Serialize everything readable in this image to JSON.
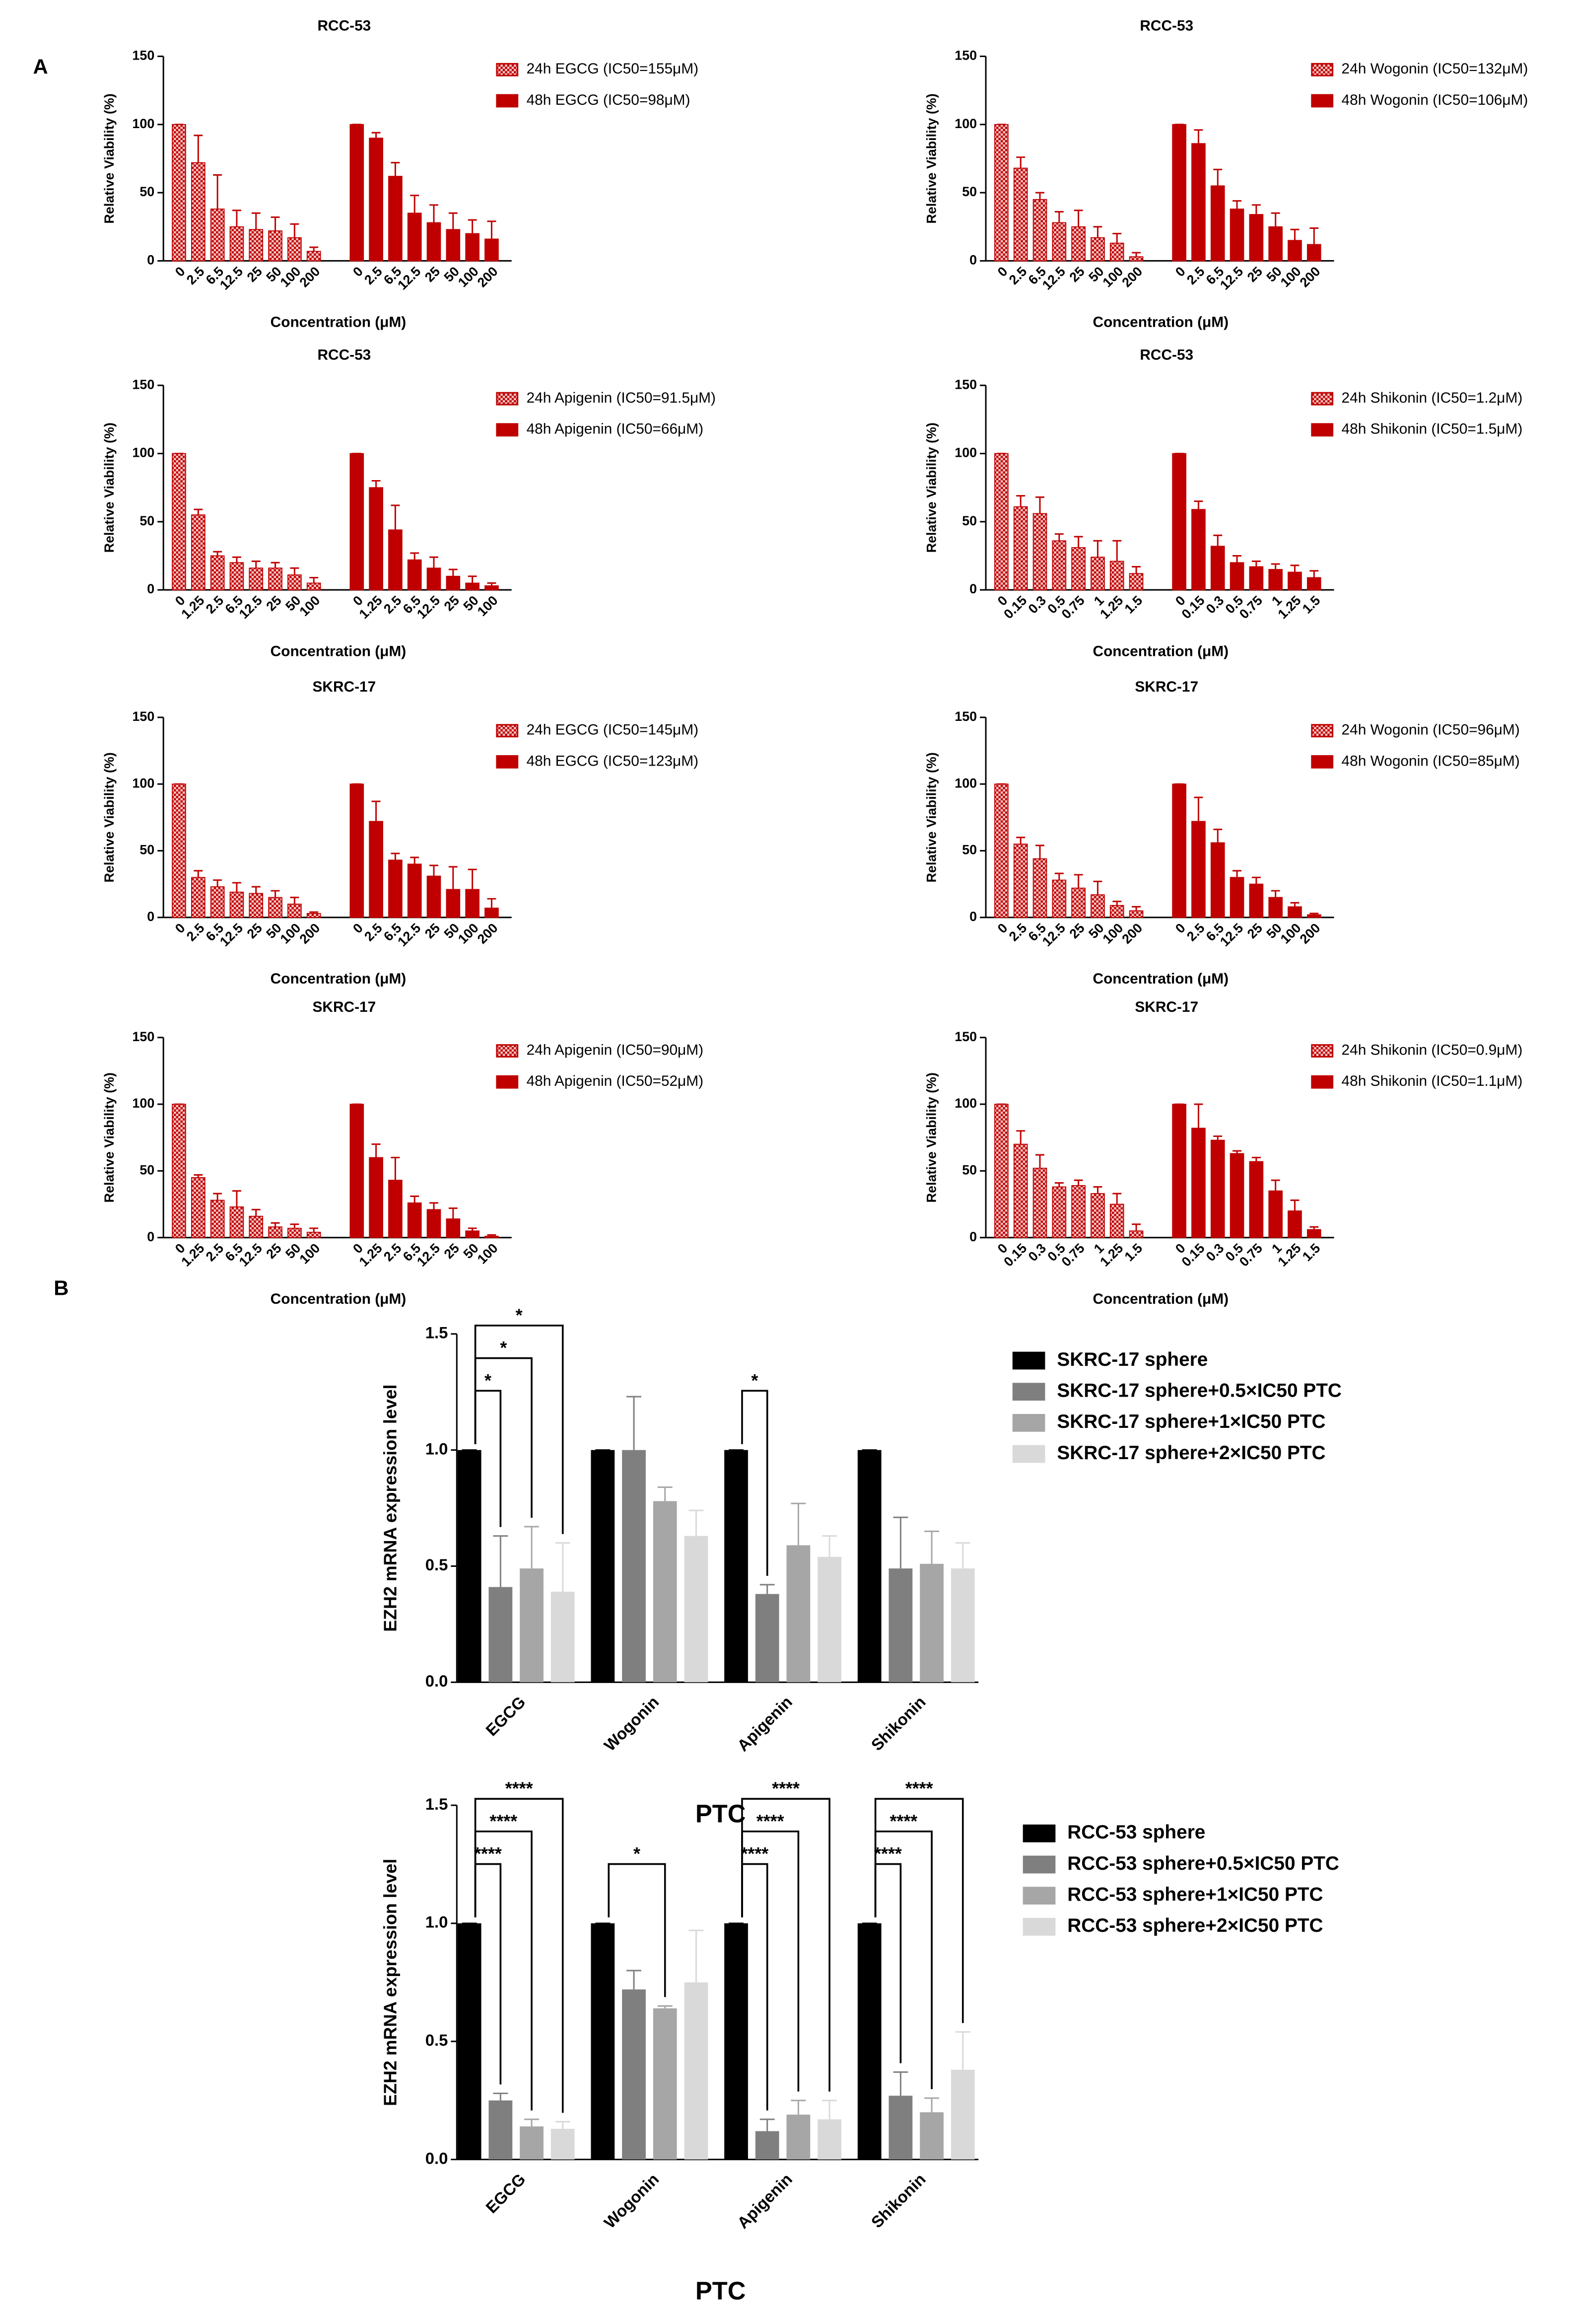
{
  "panel_labels": [
    "A",
    "B"
  ],
  "chart_data": [
    {
      "type": "bar",
      "title": "RCC-53",
      "ylabel": "Relative Viability (%)",
      "xlabel": "Concentration (μM)",
      "ylim": [
        0,
        150
      ],
      "yticks": [
        0,
        50,
        100,
        150
      ],
      "series": [
        {
          "name": "24h EGCG (IC50=155μM)",
          "color": "#c00000",
          "pattern": "checker",
          "categories": [
            "0",
            "2.5",
            "6.5",
            "12.5",
            "25",
            "50",
            "100",
            "200"
          ],
          "values": [
            100,
            72,
            38,
            25,
            23,
            22,
            17,
            7
          ],
          "errors": [
            0,
            20,
            25,
            12,
            12,
            10,
            10,
            3
          ]
        },
        {
          "name": "48h EGCG (IC50=98μM)",
          "color": "#c00000",
          "pattern": "solid",
          "categories": [
            "0",
            "2.5",
            "6.5",
            "12.5",
            "25",
            "50",
            "100",
            "200"
          ],
          "values": [
            100,
            90,
            62,
            35,
            28,
            23,
            20,
            16
          ],
          "errors": [
            0,
            4,
            10,
            13,
            13,
            12,
            10,
            13
          ]
        }
      ]
    },
    {
      "type": "bar",
      "title": "RCC-53",
      "ylabel": "Relative Viability (%)",
      "xlabel": "Concentration (μM)",
      "ylim": [
        0,
        150
      ],
      "yticks": [
        0,
        50,
        100,
        150
      ],
      "series": [
        {
          "name": "24h Wogonin (IC50=132μM)",
          "color": "#c00000",
          "pattern": "checker",
          "categories": [
            "0",
            "2.5",
            "6.5",
            "12.5",
            "25",
            "50",
            "100",
            "200"
          ],
          "values": [
            100,
            68,
            45,
            28,
            25,
            17,
            13,
            3
          ],
          "errors": [
            0,
            8,
            5,
            8,
            12,
            8,
            7,
            3
          ]
        },
        {
          "name": "48h Wogonin (IC50=106μM)",
          "color": "#c00000",
          "pattern": "solid",
          "categories": [
            "0",
            "2.5",
            "6.5",
            "12.5",
            "25",
            "50",
            "100",
            "200"
          ],
          "values": [
            100,
            86,
            55,
            38,
            34,
            25,
            15,
            12
          ],
          "errors": [
            0,
            10,
            12,
            6,
            7,
            10,
            8,
            12
          ]
        }
      ]
    },
    {
      "type": "bar",
      "title": "RCC-53",
      "ylabel": "Relative Viability (%)",
      "xlabel": "Concentration (μM)",
      "ylim": [
        0,
        150
      ],
      "yticks": [
        0,
        50,
        100,
        150
      ],
      "series": [
        {
          "name": "24h Apigenin (IC50=91.5μM)",
          "color": "#c00000",
          "pattern": "checker",
          "categories": [
            "0",
            "1.25",
            "2.5",
            "6.5",
            "12.5",
            "25",
            "50",
            "100"
          ],
          "values": [
            100,
            55,
            25,
            20,
            16,
            16,
            11,
            5
          ],
          "errors": [
            0,
            4,
            3,
            4,
            5,
            4,
            5,
            4
          ]
        },
        {
          "name": "48h Apigenin (IC50=66μM)",
          "color": "#c00000",
          "pattern": "solid",
          "categories": [
            "0",
            "1.25",
            "2.5",
            "6.5",
            "12.5",
            "25",
            "50",
            "100"
          ],
          "values": [
            100,
            75,
            44,
            22,
            16,
            10,
            5,
            3
          ],
          "errors": [
            0,
            5,
            18,
            5,
            8,
            5,
            5,
            2
          ]
        }
      ]
    },
    {
      "type": "bar",
      "title": "RCC-53",
      "ylabel": "Relative Viability (%)",
      "xlabel": "Concentration (μM)",
      "ylim": [
        0,
        150
      ],
      "yticks": [
        0,
        50,
        100,
        150
      ],
      "series": [
        {
          "name": "24h Shikonin (IC50=1.2μM)",
          "color": "#c00000",
          "pattern": "checker",
          "categories": [
            "0",
            "0.15",
            "0.3",
            "0.5",
            "0.75",
            "1",
            "1.25",
            "1.5"
          ],
          "values": [
            100,
            61,
            56,
            36,
            31,
            24,
            21,
            12
          ],
          "errors": [
            0,
            8,
            12,
            5,
            8,
            12,
            15,
            5
          ]
        },
        {
          "name": "48h Shikonin (IC50=1.5μM)",
          "color": "#c00000",
          "pattern": "solid",
          "categories": [
            "0",
            "0.15",
            "0.3",
            "0.5",
            "0.75",
            "1",
            "1.25",
            "1.5"
          ],
          "values": [
            100,
            59,
            32,
            20,
            17,
            15,
            13,
            9
          ],
          "errors": [
            0,
            6,
            8,
            5,
            4,
            4,
            5,
            5
          ]
        }
      ]
    },
    {
      "type": "bar",
      "title": "SKRC-17",
      "ylabel": "Relative Viability (%)",
      "xlabel": "Concentration (μM)",
      "ylim": [
        0,
        150
      ],
      "yticks": [
        0,
        50,
        100,
        150
      ],
      "series": [
        {
          "name": "24h EGCG (IC50=145μM)",
          "color": "#c00000",
          "pattern": "checker",
          "categories": [
            "0",
            "2.5",
            "6.5",
            "12.5",
            "25",
            "50",
            "100",
            "200"
          ],
          "values": [
            100,
            30,
            23,
            19,
            18,
            15,
            10,
            3
          ],
          "errors": [
            0,
            5,
            5,
            7,
            5,
            5,
            5,
            1
          ]
        },
        {
          "name": "48h EGCG (IC50=123μM)",
          "color": "#c00000",
          "pattern": "solid",
          "categories": [
            "0",
            "2.5",
            "6.5",
            "12.5",
            "25",
            "50",
            "100",
            "200"
          ],
          "values": [
            100,
            72,
            43,
            40,
            31,
            21,
            21,
            7
          ],
          "errors": [
            0,
            15,
            5,
            5,
            8,
            17,
            15,
            7
          ]
        }
      ]
    },
    {
      "type": "bar",
      "title": "SKRC-17",
      "ylabel": "Relative Viability (%)",
      "xlabel": "Concentration (μM)",
      "ylim": [
        0,
        150
      ],
      "yticks": [
        0,
        50,
        100,
        150
      ],
      "series": [
        {
          "name": "24h Wogonin (IC50=96μM)",
          "color": "#c00000",
          "pattern": "checker",
          "categories": [
            "0",
            "2.5",
            "6.5",
            "12.5",
            "25",
            "50",
            "100",
            "200"
          ],
          "values": [
            100,
            55,
            44,
            28,
            22,
            17,
            9,
            5
          ],
          "errors": [
            0,
            5,
            10,
            5,
            10,
            10,
            3,
            3
          ]
        },
        {
          "name": "48h Wogonin (IC50=85μM)",
          "color": "#c00000",
          "pattern": "solid",
          "categories": [
            "0",
            "2.5",
            "6.5",
            "12.5",
            "25",
            "50",
            "100",
            "200"
          ],
          "values": [
            100,
            72,
            56,
            30,
            25,
            15,
            8,
            2
          ],
          "errors": [
            0,
            18,
            10,
            5,
            5,
            5,
            3,
            1
          ]
        }
      ]
    },
    {
      "type": "bar",
      "title": "SKRC-17",
      "ylabel": "Relative Viability (%)",
      "xlabel": "Concentration (μM)",
      "ylim": [
        0,
        150
      ],
      "yticks": [
        0,
        50,
        100,
        150
      ],
      "series": [
        {
          "name": "24h Apigenin (IC50=90μM)",
          "color": "#c00000",
          "pattern": "checker",
          "categories": [
            "0",
            "1.25",
            "2.5",
            "6.5",
            "12.5",
            "25",
            "50",
            "100"
          ],
          "values": [
            100,
            45,
            28,
            23,
            16,
            8,
            7,
            4
          ],
          "errors": [
            0,
            2,
            5,
            12,
            5,
            3,
            3,
            3
          ]
        },
        {
          "name": "48h Apigenin (IC50=52μM)",
          "color": "#c00000",
          "pattern": "solid",
          "categories": [
            "0",
            "1.25",
            "2.5",
            "6.5",
            "12.5",
            "25",
            "50",
            "100"
          ],
          "values": [
            100,
            60,
            43,
            26,
            21,
            14,
            5,
            1
          ],
          "errors": [
            0,
            10,
            17,
            5,
            5,
            8,
            2,
            1
          ]
        }
      ]
    },
    {
      "type": "bar",
      "title": "SKRC-17",
      "ylabel": "Relative Viability (%)",
      "xlabel": "Concentration (μM)",
      "ylim": [
        0,
        150
      ],
      "yticks": [
        0,
        50,
        100,
        150
      ],
      "series": [
        {
          "name": "24h Shikonin (IC50=0.9μM)",
          "color": "#c00000",
          "pattern": "checker",
          "categories": [
            "0",
            "0.15",
            "0.3",
            "0.5",
            "0.75",
            "1",
            "1.25",
            "1.5"
          ],
          "values": [
            100,
            70,
            52,
            38,
            39,
            33,
            25,
            5
          ],
          "errors": [
            0,
            10,
            10,
            3,
            4,
            5,
            8,
            5
          ]
        },
        {
          "name": "48h Shikonin (IC50=1.1μM)",
          "color": "#c00000",
          "pattern": "solid",
          "categories": [
            "0",
            "0.15",
            "0.3",
            "0.5",
            "0.75",
            "1",
            "1.25",
            "1.5"
          ],
          "values": [
            100,
            82,
            73,
            63,
            57,
            35,
            20,
            6
          ],
          "errors": [
            0,
            18,
            3,
            2,
            3,
            8,
            8,
            2
          ]
        }
      ]
    },
    {
      "type": "grouped_bar",
      "ylabel": "EZH2 mRNA expression level",
      "xlabel": "PTC",
      "ylim": [
        0,
        1.5
      ],
      "yticks": [
        {
          "value": 0,
          "label": "0.0"
        },
        0.5,
        {
          "value": 1,
          "label": "1.0"
        },
        {
          "value": 1.5,
          "label": "1.5"
        }
      ],
      "categories": [
        "EGCG",
        "Wogonin",
        "Apigenin",
        "Shikonin"
      ],
      "series": [
        {
          "name": "SKRC-17 sphere",
          "color": "#000000",
          "values": [
            1,
            1,
            1,
            1
          ],
          "errors": [
            0,
            0,
            0,
            0
          ]
        },
        {
          "name": "SKRC-17 sphere+0.5×IC50 PTC",
          "color": "#7f7f7f",
          "values": [
            0.41,
            1.0,
            0.38,
            0.49
          ],
          "errors": [
            0.22,
            0.23,
            0.04,
            0.22
          ]
        },
        {
          "name": "SKRC-17 sphere+1×IC50 PTC",
          "color": "#a6a6a6",
          "values": [
            0.49,
            0.78,
            0.59,
            0.51
          ],
          "errors": [
            0.18,
            0.06,
            0.18,
            0.14
          ]
        },
        {
          "name": "SKRC-17 sphere+2×IC50 PTC",
          "color": "#d9d9d9",
          "values": [
            0.39,
            0.63,
            0.54,
            0.49
          ],
          "errors": [
            0.21,
            0.11,
            0.09,
            0.11
          ]
        }
      ],
      "brackets": [
        {
          "category": 0,
          "from": 0,
          "to": 1,
          "label": "*"
        },
        {
          "category": 0,
          "from": 0,
          "to": 2,
          "label": "*"
        },
        {
          "category": 0,
          "from": 0,
          "to": 3,
          "label": "*"
        },
        {
          "category": 2,
          "from": 0,
          "to": 1,
          "label": "*"
        }
      ]
    },
    {
      "type": "grouped_bar",
      "ylabel": "EZH2 mRNA expression level",
      "xlabel": "PTC",
      "ylim": [
        0,
        1.5
      ],
      "yticks": [
        {
          "value": 0,
          "label": "0.0"
        },
        0.5,
        {
          "value": 1,
          "label": "1.0"
        },
        {
          "value": 1.5,
          "label": "1.5"
        }
      ],
      "categories": [
        "EGCG",
        "Wogonin",
        "Apigenin",
        "Shikonin"
      ],
      "series": [
        {
          "name": "RCC-53 sphere",
          "color": "#000000",
          "values": [
            1,
            1,
            1,
            1
          ],
          "errors": [
            0,
            0,
            0,
            0
          ]
        },
        {
          "name": "RCC-53 sphere+0.5×IC50 PTC",
          "color": "#7f7f7f",
          "values": [
            0.25,
            0.72,
            0.12,
            0.27
          ],
          "errors": [
            0.03,
            0.08,
            0.05,
            0.1
          ]
        },
        {
          "name": "RCC-53 sphere+1×IC50 PTC",
          "color": "#a6a6a6",
          "values": [
            0.14,
            0.64,
            0.19,
            0.2
          ],
          "errors": [
            0.03,
            0.01,
            0.06,
            0.06
          ]
        },
        {
          "name": "RCC-53 sphere+2×IC50 PTC",
          "color": "#d9d9d9",
          "values": [
            0.13,
            0.75,
            0.17,
            0.38
          ],
          "errors": [
            0.03,
            0.22,
            0.08,
            0.16
          ]
        }
      ],
      "brackets": [
        {
          "category": 0,
          "from": 0,
          "to": 1,
          "label": "****"
        },
        {
          "category": 0,
          "from": 0,
          "to": 2,
          "label": "****"
        },
        {
          "category": 0,
          "from": 0,
          "to": 3,
          "label": "****"
        },
        {
          "category": 1,
          "from": 0,
          "to": 2,
          "label": "*"
        },
        {
          "category": 2,
          "from": 0,
          "to": 1,
          "label": "****"
        },
        {
          "category": 2,
          "from": 0,
          "to": 2,
          "label": "****"
        },
        {
          "category": 2,
          "from": 0,
          "to": 3,
          "label": "****"
        },
        {
          "category": 3,
          "from": 0,
          "to": 1,
          "label": "****"
        },
        {
          "category": 3,
          "from": 0,
          "to": 2,
          "label": "****"
        },
        {
          "category": 3,
          "from": 0,
          "to": 3,
          "label": "****"
        }
      ]
    }
  ]
}
